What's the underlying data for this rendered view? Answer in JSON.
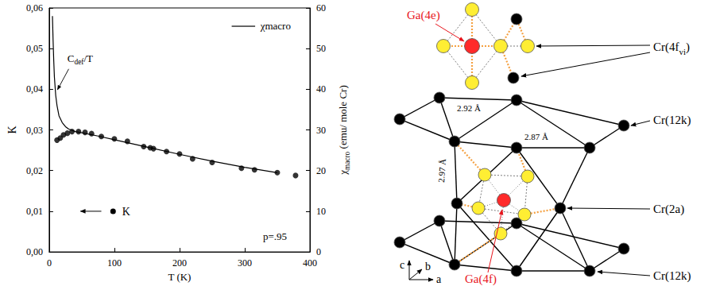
{
  "chart_data": {
    "type": "scatter",
    "xlabel": "T (K)",
    "ylabel": "K",
    "y2label": [
      {
        "text": "χ"
      },
      {
        "text": "macro",
        "sub": true
      },
      {
        "text": " (emu/ mole Cr)"
      }
    ],
    "xlim": [
      0,
      400
    ],
    "xticks": [
      0,
      100,
      200,
      300,
      400
    ],
    "ylim": [
      0,
      0.06
    ],
    "yticks": [
      {
        "value": 0,
        "label": "0,00"
      },
      {
        "value": 0.01,
        "label": "0,01"
      },
      {
        "value": 0.02,
        "label": "0,02"
      },
      {
        "value": 0.03,
        "label": "0,03"
      },
      {
        "value": 0.04,
        "label": "0,04"
      },
      {
        "value": 0.05,
        "label": "0,05"
      },
      {
        "value": 0.06,
        "label": "0,06"
      }
    ],
    "y2lim": [
      0,
      60
    ],
    "y2ticks": [
      0,
      10,
      20,
      30,
      40,
      50,
      60
    ],
    "grid": false,
    "series": [
      {
        "name": "K",
        "type": "scatter",
        "axis": "y",
        "color": "#000000",
        "marker": "circle",
        "x": [
          12,
          17,
          22,
          28,
          35,
          45,
          55,
          65,
          80,
          100,
          120,
          145,
          155,
          160,
          180,
          200,
          220,
          250,
          295,
          315,
          350,
          378
        ],
        "values": [
          0.0275,
          0.028,
          0.0288,
          0.0292,
          0.0296,
          0.0296,
          0.0294,
          0.0291,
          0.0284,
          0.0278,
          0.0272,
          0.0259,
          0.0256,
          0.0254,
          0.0247,
          0.0241,
          0.0229,
          0.022,
          0.0206,
          0.0202,
          0.0195,
          0.0188
        ]
      },
      {
        "name": "χmacro",
        "type": "line",
        "axis": "y2",
        "color": "#000000",
        "line_style": "solid",
        "x": [
          5,
          6,
          7,
          8,
          10,
          12,
          15,
          20,
          25,
          30,
          40,
          50,
          75,
          100,
          150,
          200,
          250,
          300,
          350
        ],
        "values": [
          58,
          52,
          47,
          43,
          38.5,
          36,
          33.5,
          31.8,
          30.8,
          30.2,
          29.6,
          29.3,
          28.5,
          27.6,
          25.8,
          24,
          22.3,
          20.8,
          19.5
        ]
      }
    ],
    "annotations": [
      {
        "text": [
          {
            "text": "C"
          },
          {
            "text": "def",
            "sub": true
          },
          {
            "text": "/T"
          }
        ]
      },
      {
        "text": "p=.95"
      }
    ]
  },
  "diagram": {
    "site_labels": [
      {
        "text": "Ga(4e)",
        "color": "#e8141c"
      },
      {
        "text": [
          {
            "text": "Cr(4f"
          },
          {
            "text": "vi",
            "sub": true
          },
          {
            "text": ")"
          }
        ],
        "color": "#000000"
      },
      {
        "text": "Cr(12k)",
        "color": "#000000"
      },
      {
        "text": "Cr(2a)",
        "color": "#000000"
      },
      {
        "text": "Cr(12k)",
        "color": "#000000"
      },
      {
        "text": "Ga(4f)",
        "color": "#e8141c"
      }
    ],
    "distances": [
      "2.92 Å",
      "2.87 Å",
      "2.97 Å"
    ],
    "axes": [
      "c",
      "b",
      "a"
    ]
  }
}
